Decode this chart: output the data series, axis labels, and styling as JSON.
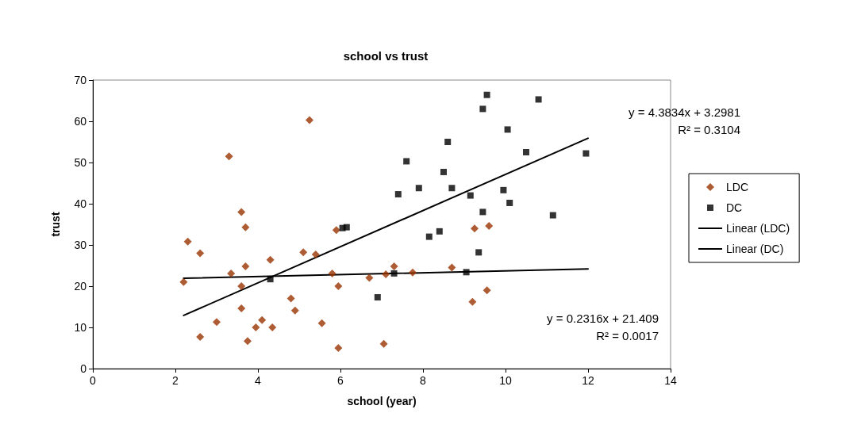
{
  "chart_data": {
    "type": "scatter",
    "title": "school vs trust",
    "xlabel": "school (year)",
    "ylabel": "trust",
    "xlim": [
      0,
      14
    ],
    "xticks": [
      0,
      2,
      4,
      6,
      8,
      10,
      12,
      14
    ],
    "ylim": [
      0,
      70
    ],
    "yticks": [
      0,
      10,
      20,
      30,
      40,
      50,
      60,
      70
    ],
    "grid": false,
    "legend": "right",
    "series": [
      {
        "name": "LDC",
        "color": "#993300",
        "marker": "diamond",
        "x": [
          2.2,
          2.3,
          2.6,
          2.6,
          3.0,
          3.3,
          3.35,
          3.6,
          3.6,
          3.6,
          3.7,
          3.7,
          3.75,
          3.95,
          4.1,
          4.3,
          4.35,
          4.8,
          4.9,
          5.1,
          5.25,
          5.4,
          5.55,
          5.8,
          5.9,
          5.95,
          5.95,
          6.7,
          7.05,
          7.1,
          7.3,
          7.75,
          8.7,
          9.2,
          9.25,
          9.55,
          9.6
        ],
        "values": [
          21,
          30.8,
          28,
          7.7,
          11.3,
          51.5,
          23.1,
          38,
          20,
          14.6,
          34.3,
          24.8,
          6.7,
          10,
          11.8,
          26.4,
          10,
          17,
          14.1,
          28.2,
          60.3,
          27.7,
          11,
          23.1,
          33.6,
          20,
          5,
          22,
          6,
          22.9,
          24.8,
          23.3,
          24.5,
          16.2,
          34,
          19,
          34.6
        ]
      },
      {
        "name": "DC",
        "color": "#000000",
        "marker": "square",
        "x": [
          4.3,
          6.05,
          6.15,
          6.9,
          7.3,
          7.4,
          7.6,
          7.9,
          8.15,
          8.4,
          8.5,
          8.6,
          8.7,
          9.05,
          9.15,
          9.35,
          9.45,
          9.45,
          9.55,
          9.95,
          10.05,
          10.1,
          10.5,
          10.8,
          11.15,
          11.95
        ],
        "values": [
          21.7,
          34.1,
          34.3,
          17.3,
          23.1,
          42.3,
          50.3,
          43.8,
          32,
          33.3,
          47.7,
          55,
          43.8,
          23.4,
          42,
          28.2,
          38,
          63,
          66.4,
          43.3,
          58,
          40.2,
          52.5,
          65.3,
          37.2,
          52.2
        ]
      },
      {
        "name": "Linear (LDC)",
        "type": "line",
        "color": "#000000",
        "marker": "none",
        "line_style": "solid",
        "x": [
          2.2,
          12
        ],
        "values": [
          21.9,
          24.2
        ]
      },
      {
        "name": "Linear (DC)",
        "type": "line",
        "color": "#000000",
        "marker": "none",
        "line_style": "solid",
        "x": [
          2.2,
          12
        ],
        "values": [
          12.9,
          55.9
        ]
      }
    ],
    "annotations": [
      "y = 4.3834x + 3.2981\nR² = 0.3104",
      "y = 0.2316x + 21.409\nR² = 0.0017"
    ]
  }
}
